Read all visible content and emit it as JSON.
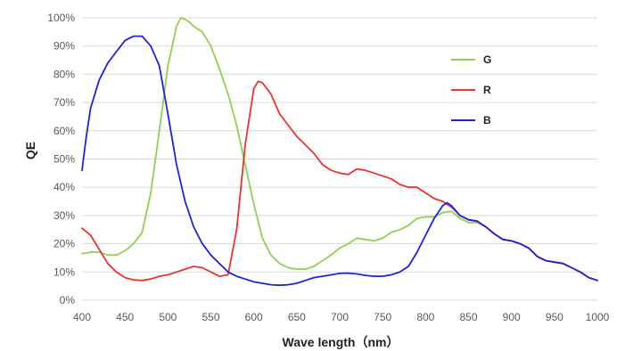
{
  "chart_data": {
    "type": "line",
    "title": "",
    "xlabel": "Wave length（nm）",
    "ylabel": "QE",
    "xlim": [
      400,
      1000
    ],
    "ylim": [
      0,
      100
    ],
    "xticks": [
      400,
      450,
      500,
      550,
      600,
      650,
      700,
      750,
      800,
      850,
      900,
      950,
      1000
    ],
    "yticks": [
      0,
      10,
      20,
      30,
      40,
      50,
      60,
      70,
      80,
      90,
      100
    ],
    "ytick_format": "%",
    "grid": "horizontal",
    "legend_position": "top-right",
    "series": [
      {
        "name": "G",
        "color": "#8fd14f",
        "points": [
          [
            400,
            16.5
          ],
          [
            410,
            17
          ],
          [
            420,
            17
          ],
          [
            430,
            16
          ],
          [
            440,
            16
          ],
          [
            450,
            17.5
          ],
          [
            460,
            20
          ],
          [
            470,
            24
          ],
          [
            480,
            38
          ],
          [
            490,
            60
          ],
          [
            500,
            83
          ],
          [
            510,
            97
          ],
          [
            515,
            100
          ],
          [
            520,
            99.5
          ],
          [
            525,
            98.5
          ],
          [
            530,
            97
          ],
          [
            540,
            95
          ],
          [
            550,
            90
          ],
          [
            560,
            82
          ],
          [
            570,
            73
          ],
          [
            580,
            62
          ],
          [
            590,
            48
          ],
          [
            600,
            34
          ],
          [
            610,
            22
          ],
          [
            620,
            16
          ],
          [
            630,
            13
          ],
          [
            640,
            11.5
          ],
          [
            650,
            11
          ],
          [
            660,
            11
          ],
          [
            670,
            12
          ],
          [
            680,
            14
          ],
          [
            690,
            16
          ],
          [
            700,
            18.5
          ],
          [
            710,
            20
          ],
          [
            720,
            22
          ],
          [
            730,
            21.5
          ],
          [
            740,
            21
          ],
          [
            750,
            22
          ],
          [
            760,
            24
          ],
          [
            770,
            25
          ],
          [
            780,
            26.5
          ],
          [
            790,
            29
          ],
          [
            800,
            29.5
          ],
          [
            810,
            29.5
          ],
          [
            820,
            31
          ],
          [
            830,
            31.5
          ],
          [
            840,
            29
          ],
          [
            850,
            27.5
          ],
          [
            860,
            27.5
          ],
          [
            870,
            26
          ],
          [
            880,
            23.5
          ],
          [
            890,
            21.5
          ],
          [
            900,
            21
          ],
          [
            910,
            20
          ],
          [
            920,
            18.5
          ],
          [
            930,
            15.5
          ],
          [
            940,
            14
          ],
          [
            950,
            13.5
          ],
          [
            960,
            13
          ],
          [
            970,
            11.5
          ],
          [
            980,
            10
          ],
          [
            990,
            8
          ],
          [
            1000,
            7
          ]
        ]
      },
      {
        "name": "R",
        "color": "#ee3131",
        "points": [
          [
            400,
            25.5
          ],
          [
            410,
            23
          ],
          [
            420,
            18
          ],
          [
            430,
            13
          ],
          [
            440,
            10
          ],
          [
            450,
            8
          ],
          [
            460,
            7.2
          ],
          [
            470,
            7
          ],
          [
            480,
            7.5
          ],
          [
            490,
            8.5
          ],
          [
            500,
            9
          ],
          [
            510,
            10
          ],
          [
            520,
            11
          ],
          [
            530,
            12
          ],
          [
            540,
            11.5
          ],
          [
            550,
            10
          ],
          [
            560,
            8.5
          ],
          [
            570,
            9
          ],
          [
            580,
            25
          ],
          [
            590,
            55
          ],
          [
            600,
            75
          ],
          [
            605,
            77.5
          ],
          [
            610,
            77
          ],
          [
            620,
            73
          ],
          [
            630,
            66
          ],
          [
            640,
            62
          ],
          [
            650,
            58
          ],
          [
            660,
            55
          ],
          [
            670,
            52
          ],
          [
            680,
            48
          ],
          [
            690,
            46
          ],
          [
            700,
            45
          ],
          [
            710,
            44.5
          ],
          [
            720,
            46.5
          ],
          [
            730,
            46
          ],
          [
            740,
            45
          ],
          [
            750,
            44
          ],
          [
            760,
            43
          ],
          [
            770,
            41
          ],
          [
            780,
            40
          ],
          [
            790,
            40
          ],
          [
            800,
            38
          ],
          [
            810,
            36
          ],
          [
            820,
            35
          ],
          [
            830,
            33
          ],
          [
            840,
            30
          ],
          [
            850,
            28.5
          ],
          [
            860,
            28
          ],
          [
            870,
            26
          ],
          [
            880,
            23.5
          ],
          [
            890,
            21.5
          ],
          [
            900,
            21
          ],
          [
            910,
            20
          ],
          [
            920,
            18.5
          ],
          [
            930,
            15.5
          ],
          [
            940,
            14
          ],
          [
            950,
            13.5
          ],
          [
            960,
            13
          ],
          [
            970,
            11.5
          ],
          [
            980,
            10
          ],
          [
            990,
            8
          ],
          [
            1000,
            7
          ]
        ]
      },
      {
        "name": "B",
        "color": "#1f24d8",
        "points": [
          [
            400,
            46
          ],
          [
            405,
            58
          ],
          [
            410,
            68
          ],
          [
            420,
            78
          ],
          [
            430,
            84
          ],
          [
            440,
            88
          ],
          [
            450,
            92
          ],
          [
            460,
            93.5
          ],
          [
            470,
            93.5
          ],
          [
            480,
            90
          ],
          [
            490,
            83
          ],
          [
            500,
            66
          ],
          [
            510,
            48
          ],
          [
            520,
            35
          ],
          [
            530,
            26
          ],
          [
            540,
            20
          ],
          [
            550,
            16
          ],
          [
            560,
            13
          ],
          [
            570,
            10
          ],
          [
            580,
            8.5
          ],
          [
            590,
            7.5
          ],
          [
            600,
            6.5
          ],
          [
            610,
            6
          ],
          [
            620,
            5.5
          ],
          [
            630,
            5.3
          ],
          [
            640,
            5.5
          ],
          [
            650,
            6
          ],
          [
            660,
            7
          ],
          [
            670,
            8
          ],
          [
            680,
            8.5
          ],
          [
            690,
            9
          ],
          [
            700,
            9.5
          ],
          [
            710,
            9.6
          ],
          [
            720,
            9.3
          ],
          [
            730,
            8.8
          ],
          [
            740,
            8.5
          ],
          [
            750,
            8.5
          ],
          [
            760,
            9
          ],
          [
            770,
            10
          ],
          [
            780,
            12
          ],
          [
            790,
            17
          ],
          [
            800,
            23
          ],
          [
            810,
            29
          ],
          [
            820,
            33.5
          ],
          [
            825,
            34.5
          ],
          [
            830,
            33.5
          ],
          [
            840,
            30
          ],
          [
            850,
            28.5
          ],
          [
            860,
            28
          ],
          [
            870,
            26
          ],
          [
            880,
            23.5
          ],
          [
            890,
            21.5
          ],
          [
            900,
            21
          ],
          [
            910,
            20
          ],
          [
            920,
            18.5
          ],
          [
            930,
            15.5
          ],
          [
            940,
            14
          ],
          [
            950,
            13.5
          ],
          [
            960,
            13
          ],
          [
            970,
            11.5
          ],
          [
            980,
            10
          ],
          [
            990,
            8
          ],
          [
            1000,
            7
          ]
        ]
      }
    ]
  }
}
